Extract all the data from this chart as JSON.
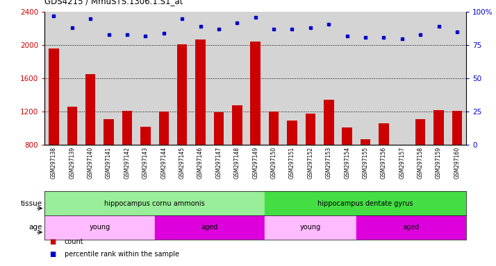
{
  "title": "GDS4215 / MmuSTS.1306.1.S1_at",
  "samples": [
    "GSM297138",
    "GSM297139",
    "GSM297140",
    "GSM297141",
    "GSM297142",
    "GSM297143",
    "GSM297144",
    "GSM297145",
    "GSM297146",
    "GSM297147",
    "GSM297148",
    "GSM297149",
    "GSM297150",
    "GSM297151",
    "GSM297152",
    "GSM297153",
    "GSM297154",
    "GSM297155",
    "GSM297156",
    "GSM297157",
    "GSM297158",
    "GSM297159",
    "GSM297160"
  ],
  "counts": [
    1960,
    1260,
    1650,
    1110,
    1210,
    1020,
    1200,
    2010,
    2070,
    1190,
    1280,
    2040,
    1200,
    1090,
    1175,
    1340,
    1010,
    870,
    1060,
    800,
    1110,
    1220,
    1210
  ],
  "percentile": [
    97,
    88,
    95,
    83,
    83,
    82,
    84,
    95,
    89,
    87,
    92,
    96,
    87,
    87,
    88,
    91,
    82,
    81,
    81,
    80,
    83,
    89,
    85
  ],
  "ylim_left": [
    800,
    2400
  ],
  "ylim_right": [
    0,
    100
  ],
  "yticks_left": [
    800,
    1200,
    1600,
    2000,
    2400
  ],
  "yticks_right": [
    0,
    25,
    50,
    75,
    100
  ],
  "bar_color": "#cc0000",
  "dot_color": "#0000cc",
  "grid_color": "#000000",
  "bg_color": "#d4d4d4",
  "tissue_row": {
    "label": "tissue",
    "segments": [
      {
        "text": "hippocampus cornu ammonis",
        "start": 0,
        "end": 12,
        "color": "#99ee99"
      },
      {
        "text": "hippocampus dentate gyrus",
        "start": 12,
        "end": 23,
        "color": "#44dd44"
      }
    ]
  },
  "age_row": {
    "label": "age",
    "segments": [
      {
        "text": "young",
        "start": 0,
        "end": 6,
        "color": "#ffbbff"
      },
      {
        "text": "aged",
        "start": 6,
        "end": 12,
        "color": "#dd00dd"
      },
      {
        "text": "young",
        "start": 12,
        "end": 17,
        "color": "#ffbbff"
      },
      {
        "text": "aged",
        "start": 17,
        "end": 23,
        "color": "#dd00dd"
      }
    ]
  },
  "legend_count_color": "#cc0000",
  "legend_dot_color": "#0000cc",
  "legend_count_label": "count",
  "legend_dot_label": "percentile rank within the sample"
}
